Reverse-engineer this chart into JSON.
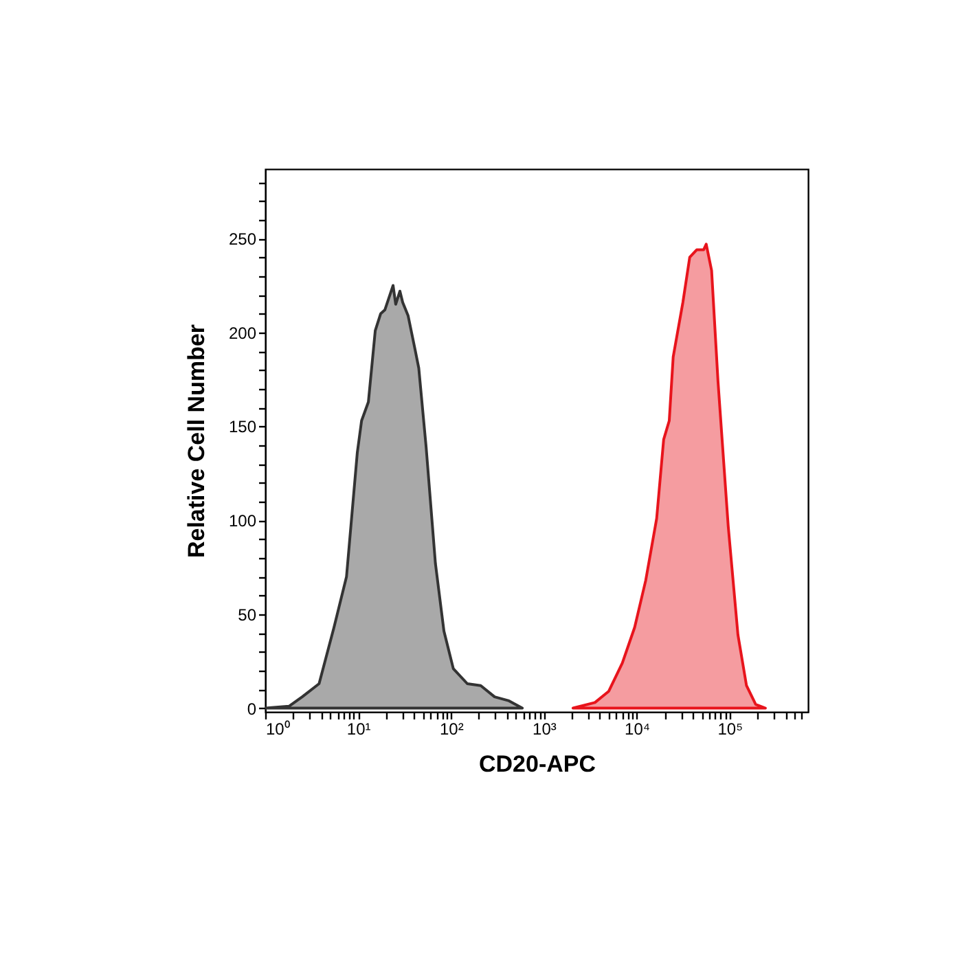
{
  "chart_data": {
    "type": "area",
    "xlabel": "CD20-APC",
    "ylabel": "Relative Cell Number",
    "log": "x",
    "grid": false,
    "legend": false,
    "xlim": [
      1,
      700000
    ],
    "ylim": [
      -2,
      287
    ],
    "xticks": [
      {
        "value": 1,
        "label": "10⁰"
      },
      {
        "value": 2,
        "label": null
      },
      {
        "value": 3,
        "label": null
      },
      {
        "value": 4,
        "label": null
      },
      {
        "value": 5,
        "label": null
      },
      {
        "value": 6,
        "label": null
      },
      {
        "value": 7,
        "label": null
      },
      {
        "value": 8,
        "label": null
      },
      {
        "value": 9,
        "label": null
      },
      {
        "value": 10,
        "label": "10¹"
      },
      {
        "value": 20,
        "label": null
      },
      {
        "value": 30,
        "label": null
      },
      {
        "value": 40,
        "label": null
      },
      {
        "value": 50,
        "label": null
      },
      {
        "value": 60,
        "label": null
      },
      {
        "value": 70,
        "label": null
      },
      {
        "value": 80,
        "label": null
      },
      {
        "value": 90,
        "label": null
      },
      {
        "value": 100,
        "label": "10²"
      },
      {
        "value": 200,
        "label": null
      },
      {
        "value": 300,
        "label": null
      },
      {
        "value": 400,
        "label": null
      },
      {
        "value": 500,
        "label": null
      },
      {
        "value": 600,
        "label": null
      },
      {
        "value": 700,
        "label": null
      },
      {
        "value": 800,
        "label": null
      },
      {
        "value": 900,
        "label": null
      },
      {
        "value": 1000,
        "label": "10³"
      },
      {
        "value": 2000,
        "label": null
      },
      {
        "value": 3000,
        "label": null
      },
      {
        "value": 4000,
        "label": null
      },
      {
        "value": 5000,
        "label": null
      },
      {
        "value": 6000,
        "label": null
      },
      {
        "value": 7000,
        "label": null
      },
      {
        "value": 8000,
        "label": null
      },
      {
        "value": 9000,
        "label": null
      },
      {
        "value": 10000,
        "label": "10⁴"
      },
      {
        "value": 20000,
        "label": null
      },
      {
        "value": 30000,
        "label": null
      },
      {
        "value": 40000,
        "label": null
      },
      {
        "value": 50000,
        "label": null
      },
      {
        "value": 60000,
        "label": null
      },
      {
        "value": 70000,
        "label": null
      },
      {
        "value": 80000,
        "label": null
      },
      {
        "value": 90000,
        "label": null
      },
      {
        "value": 100000,
        "label": "10⁵"
      },
      {
        "value": 200000,
        "label": null
      },
      {
        "value": 300000,
        "label": null
      },
      {
        "value": 400000,
        "label": null
      },
      {
        "value": 500000,
        "label": null
      },
      {
        "value": 600000,
        "label": null
      }
    ],
    "yticks": [
      0,
      {
        "value": 10,
        "label": null
      },
      {
        "value": 20,
        "label": null
      },
      {
        "value": 30,
        "label": null
      },
      {
        "value": 40,
        "label": null
      },
      50,
      {
        "value": 60,
        "label": null
      },
      {
        "value": 70,
        "label": null
      },
      {
        "value": 80,
        "label": null
      },
      {
        "value": 90,
        "label": null
      },
      100,
      {
        "value": 110,
        "label": null
      },
      {
        "value": 120,
        "label": null
      },
      {
        "value": 130,
        "label": null
      },
      {
        "value": 140,
        "label": null
      },
      150,
      {
        "value": 160,
        "label": null
      },
      {
        "value": 170,
        "label": null
      },
      {
        "value": 180,
        "label": null
      },
      {
        "value": 190,
        "label": null
      },
      200,
      {
        "value": 210,
        "label": null
      },
      {
        "value": 220,
        "label": null
      },
      {
        "value": 230,
        "label": null
      },
      {
        "value": 240,
        "label": null
      },
      250,
      {
        "value": 260,
        "label": null
      },
      {
        "value": 270,
        "label": null
      },
      {
        "value": 280,
        "label": null
      }
    ],
    "series": [
      {
        "color": "#333333",
        "x": [
          1,
          1.8,
          2.5,
          3.8,
          5.5,
          7.5,
          9.8,
          10.9,
          12.9,
          15.3,
          17.5,
          19.4,
          23.8,
          25.4,
          28.2,
          30.2,
          34.5,
          41,
          45,
          54,
          68,
          84,
          106,
          150,
          209,
          295,
          415,
          586
        ],
        "values": [
          0,
          1,
          6,
          13,
          43,
          70,
          136,
          153,
          163,
          201,
          210,
          212,
          225,
          215,
          222,
          216,
          209,
          191,
          181,
          139,
          77,
          41,
          21,
          13,
          12,
          6,
          4,
          0
        ]
      },
      {
        "color": "#e8141c",
        "x": [
          2060,
          3550,
          5000,
          7000,
          9500,
          12500,
          16400,
          19500,
          22400,
          24700,
          31400,
          37200,
          44200,
          52500,
          56000,
          64000,
          75000,
          96600,
          123000,
          152000,
          191000,
          243000
        ],
        "values": [
          0,
          3,
          9,
          24,
          43,
          68,
          101,
          143,
          153,
          187,
          216,
          240,
          244,
          244,
          247,
          233,
          174,
          97,
          39,
          12,
          2,
          0
        ]
      }
    ]
  }
}
